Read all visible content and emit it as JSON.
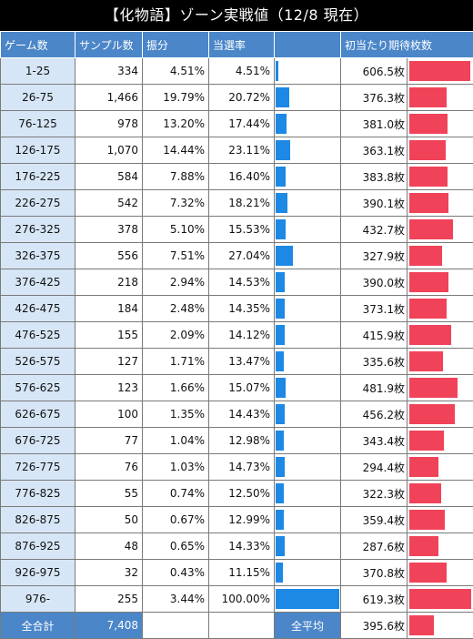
{
  "title": "【化物語】ゾーン実戦値（12/8 現在）",
  "headers": [
    "ゲーム数",
    "サンプル数",
    "振分",
    "当選率",
    "",
    "初当たり期待枚数",
    ""
  ],
  "chart_data": {
    "type": "table",
    "rows": [
      {
        "game": "1-25",
        "samples": "334",
        "share": "4.51%",
        "rate": "4.51%",
        "rate_value": 4.51,
        "expected": "606.5枚",
        "expected_value": 606.5
      },
      {
        "game": "26-75",
        "samples": "1,466",
        "share": "19.79%",
        "rate": "20.72%",
        "rate_value": 20.72,
        "expected": "376.3枚",
        "expected_value": 376.3
      },
      {
        "game": "76-125",
        "samples": "978",
        "share": "13.20%",
        "rate": "17.44%",
        "rate_value": 17.44,
        "expected": "381.0枚",
        "expected_value": 381.0
      },
      {
        "game": "126-175",
        "samples": "1,070",
        "share": "14.44%",
        "rate": "23.11%",
        "rate_value": 23.11,
        "expected": "363.1枚",
        "expected_value": 363.1
      },
      {
        "game": "176-225",
        "samples": "584",
        "share": "7.88%",
        "rate": "16.40%",
        "rate_value": 16.4,
        "expected": "383.8枚",
        "expected_value": 383.8
      },
      {
        "game": "226-275",
        "samples": "542",
        "share": "7.32%",
        "rate": "18.21%",
        "rate_value": 18.21,
        "expected": "390.1枚",
        "expected_value": 390.1
      },
      {
        "game": "276-325",
        "samples": "378",
        "share": "5.10%",
        "rate": "15.53%",
        "rate_value": 15.53,
        "expected": "432.7枚",
        "expected_value": 432.7
      },
      {
        "game": "326-375",
        "samples": "556",
        "share": "7.51%",
        "rate": "27.04%",
        "rate_value": 27.04,
        "expected": "327.9枚",
        "expected_value": 327.9
      },
      {
        "game": "376-425",
        "samples": "218",
        "share": "2.94%",
        "rate": "14.53%",
        "rate_value": 14.53,
        "expected": "390.0枚",
        "expected_value": 390.0
      },
      {
        "game": "426-475",
        "samples": "184",
        "share": "2.48%",
        "rate": "14.35%",
        "rate_value": 14.35,
        "expected": "373.1枚",
        "expected_value": 373.1
      },
      {
        "game": "476-525",
        "samples": "155",
        "share": "2.09%",
        "rate": "14.12%",
        "rate_value": 14.12,
        "expected": "415.9枚",
        "expected_value": 415.9
      },
      {
        "game": "526-575",
        "samples": "127",
        "share": "1.71%",
        "rate": "13.47%",
        "rate_value": 13.47,
        "expected": "335.6枚",
        "expected_value": 335.6
      },
      {
        "game": "576-625",
        "samples": "123",
        "share": "1.66%",
        "rate": "15.07%",
        "rate_value": 15.07,
        "expected": "481.9枚",
        "expected_value": 481.9
      },
      {
        "game": "626-675",
        "samples": "100",
        "share": "1.35%",
        "rate": "14.43%",
        "rate_value": 14.43,
        "expected": "456.2枚",
        "expected_value": 456.2
      },
      {
        "game": "676-725",
        "samples": "77",
        "share": "1.04%",
        "rate": "12.98%",
        "rate_value": 12.98,
        "expected": "343.4枚",
        "expected_value": 343.4
      },
      {
        "game": "726-775",
        "samples": "76",
        "share": "1.03%",
        "rate": "14.73%",
        "rate_value": 14.73,
        "expected": "294.4枚",
        "expected_value": 294.4
      },
      {
        "game": "776-825",
        "samples": "55",
        "share": "0.74%",
        "rate": "12.50%",
        "rate_value": 12.5,
        "expected": "322.3枚",
        "expected_value": 322.3
      },
      {
        "game": "826-875",
        "samples": "50",
        "share": "0.67%",
        "rate": "12.99%",
        "rate_value": 12.99,
        "expected": "359.4枚",
        "expected_value": 359.4
      },
      {
        "game": "876-925",
        "samples": "48",
        "share": "0.65%",
        "rate": "14.33%",
        "rate_value": 14.33,
        "expected": "287.6枚",
        "expected_value": 287.6
      },
      {
        "game": "926-975",
        "samples": "32",
        "share": "0.43%",
        "rate": "11.15%",
        "rate_value": 11.15,
        "expected": "370.8枚",
        "expected_value": 370.8
      },
      {
        "game": "976-",
        "samples": "255",
        "share": "3.44%",
        "rate": "100.00%",
        "rate_value": 100.0,
        "expected": "619.3枚",
        "expected_value": 619.3
      }
    ],
    "rate_bar_max": 100,
    "expected_bar_max": 619.3,
    "rate_bar_color": "#1e88e5",
    "expected_bar_color": "#f0435a"
  },
  "footer": {
    "total_label": "全合計",
    "total_value": "7,408",
    "avg_label": "全平均",
    "avg_value": "395.6枚",
    "avg_numeric": 395.6
  }
}
